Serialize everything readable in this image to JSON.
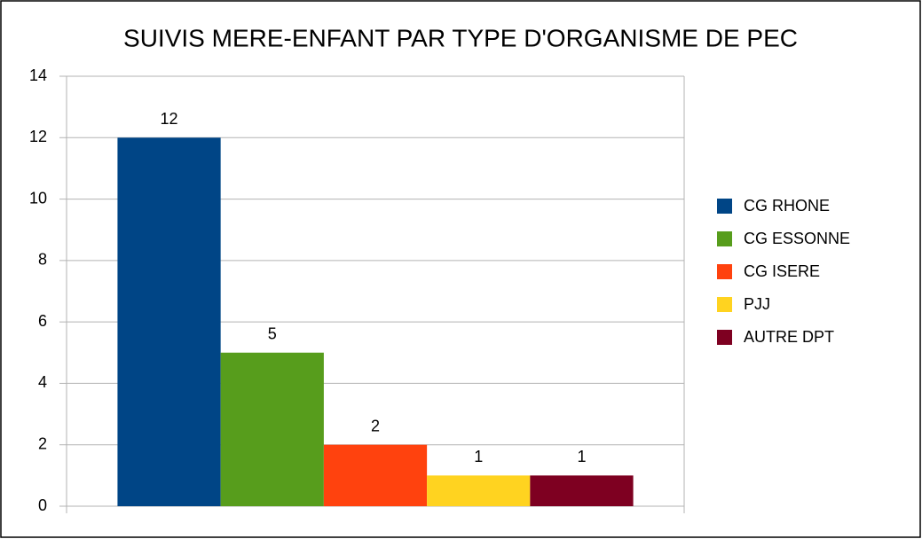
{
  "chart_data": {
    "type": "bar",
    "title": "SUIVIS MERE-ENFANT PAR TYPE D'ORGANISME DE PEC",
    "categories": [
      null
    ],
    "series": [
      {
        "name": "CG RHONE",
        "color": "#004586",
        "values": [
          12
        ]
      },
      {
        "name": "CG ESSONNE",
        "color": "#579d1c",
        "values": [
          5
        ]
      },
      {
        "name": "CG ISERE",
        "color": "#ff420e",
        "values": [
          2
        ]
      },
      {
        "name": "PJJ",
        "color": "#ffd320",
        "values": [
          1
        ]
      },
      {
        "name": "AUTRE DPT",
        "color": "#7e0021",
        "values": [
          1
        ]
      }
    ],
    "ylim": [
      0,
      14
    ],
    "yticks": [
      0,
      2,
      4,
      6,
      8,
      10,
      12,
      14
    ],
    "grid": true,
    "legend": "right",
    "data_labels": true
  }
}
